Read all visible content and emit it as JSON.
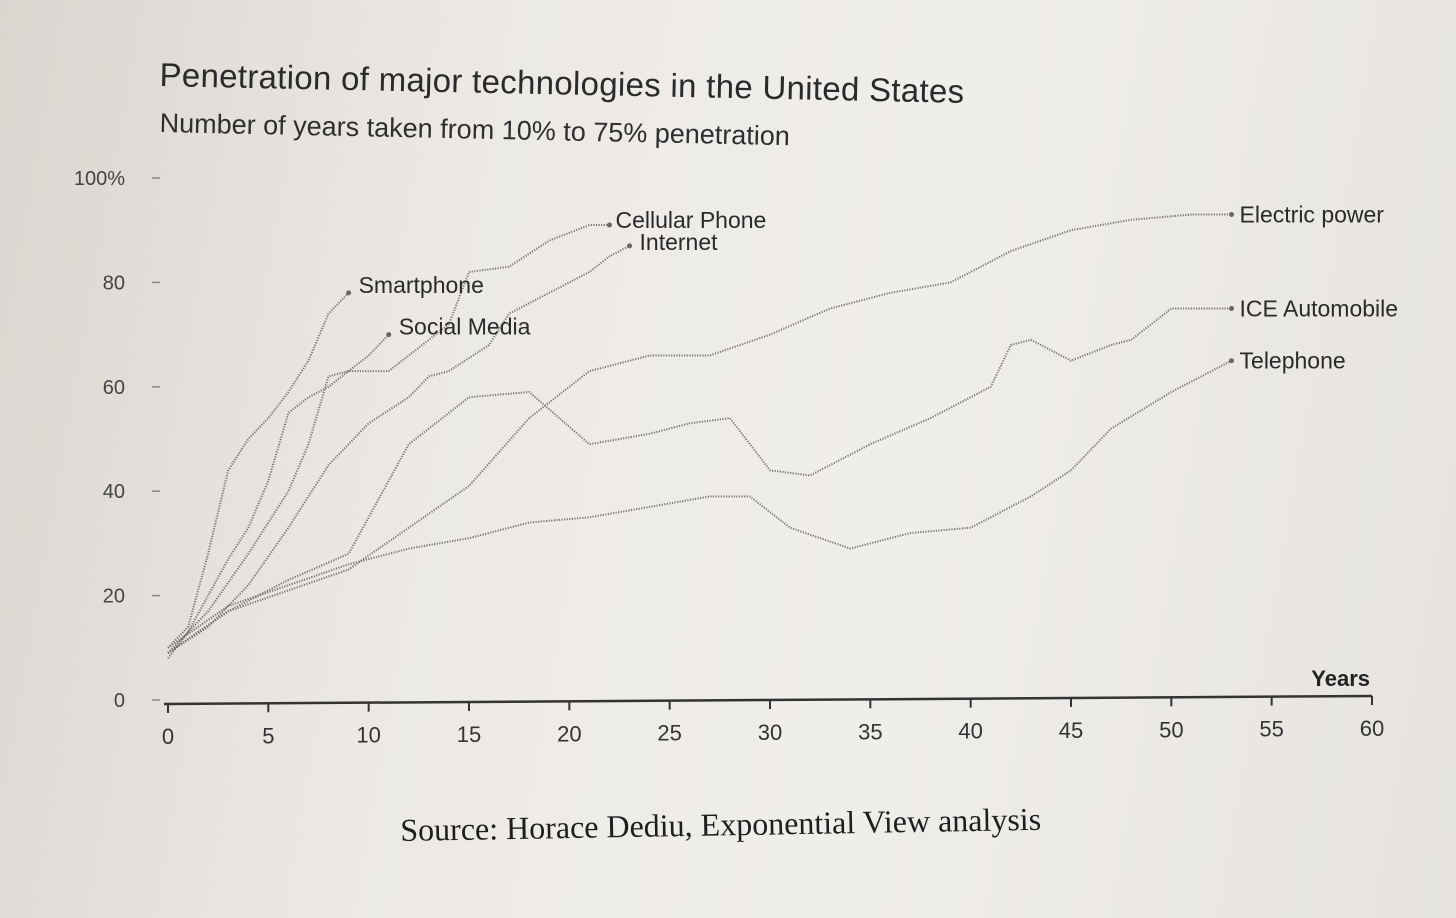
{
  "title": "Penetration of major technologies in the United States",
  "subtitle": "Number of years taken from 10% to 75% penetration",
  "source": "Source: Horace Dediu, Exponential View analysis",
  "colors": {
    "line": "#6a6764",
    "axis": "#333333",
    "grid": "#c9c6c2"
  },
  "chart_data": {
    "type": "line",
    "title": "Penetration of major technologies in the United States",
    "subtitle": "Number of years taken from 10% to 75% penetration",
    "xlabel": "Years",
    "ylabel": "",
    "xlim": [
      0,
      60
    ],
    "ylim": [
      0,
      100
    ],
    "xticks": [
      0,
      5,
      10,
      15,
      20,
      25,
      30,
      35,
      40,
      45,
      50,
      55,
      60
    ],
    "yticks": [
      0,
      20,
      40,
      60,
      80,
      100
    ],
    "ytick_labels": [
      "0",
      "20",
      "40",
      "60",
      "80",
      "100%"
    ],
    "grid": false,
    "series": [
      {
        "name": "Smartphone",
        "x": [
          0,
          1,
          2,
          3,
          4,
          5,
          6,
          7,
          8,
          9
        ],
        "y": [
          10,
          14,
          28,
          44,
          50,
          54,
          59,
          65,
          74,
          78
        ]
      },
      {
        "name": "Social Media",
        "x": [
          0,
          1,
          2,
          3,
          4,
          5,
          6,
          7,
          8,
          9,
          10,
          11
        ],
        "y": [
          8,
          13,
          20,
          27,
          33,
          42,
          55,
          58,
          60,
          63,
          66,
          70
        ]
      },
      {
        "name": "Cellular Phone",
        "x": [
          0,
          2,
          4,
          6,
          7,
          8,
          9,
          10,
          11,
          12,
          14,
          15,
          17,
          19,
          21,
          22
        ],
        "y": [
          9,
          17,
          28,
          40,
          49,
          62,
          63,
          63,
          63,
          66,
          72,
          82,
          83,
          88,
          91,
          91
        ]
      },
      {
        "name": "Internet",
        "x": [
          0,
          2,
          4,
          6,
          8,
          10,
          12,
          13,
          14,
          16,
          17,
          19,
          21,
          22,
          23
        ],
        "y": [
          9,
          14,
          22,
          33,
          45,
          53,
          58,
          62,
          63,
          68,
          74,
          78,
          82,
          85,
          87
        ]
      },
      {
        "name": "Electric power",
        "x": [
          0,
          3,
          6,
          9,
          12,
          15,
          18,
          21,
          24,
          27,
          30,
          33,
          36,
          39,
          42,
          45,
          48,
          51,
          53
        ],
        "y": [
          9,
          17,
          21,
          25,
          33,
          41,
          54,
          63,
          66,
          66,
          70,
          75,
          78,
          80,
          86,
          90,
          92,
          93,
          93
        ]
      },
      {
        "name": "ICE Automobile",
        "x": [
          0,
          3,
          6,
          9,
          12,
          15,
          18,
          21,
          24,
          26,
          28,
          30,
          32,
          35,
          38,
          41,
          42,
          43,
          45,
          47,
          48,
          50,
          53
        ],
        "y": [
          9,
          17,
          23,
          28,
          49,
          58,
          59,
          49,
          51,
          53,
          54,
          44,
          43,
          49,
          54,
          60,
          68,
          69,
          65,
          68,
          69,
          75,
          75
        ]
      },
      {
        "name": "Telephone",
        "x": [
          0,
          3,
          6,
          9,
          12,
          15,
          18,
          21,
          24,
          27,
          29,
          31,
          34,
          37,
          40,
          43,
          45,
          47,
          50,
          53
        ],
        "y": [
          10,
          18,
          22,
          26,
          29,
          31,
          34,
          35,
          37,
          39,
          39,
          33,
          29,
          32,
          33,
          39,
          44,
          52,
          59,
          65
        ]
      }
    ]
  }
}
